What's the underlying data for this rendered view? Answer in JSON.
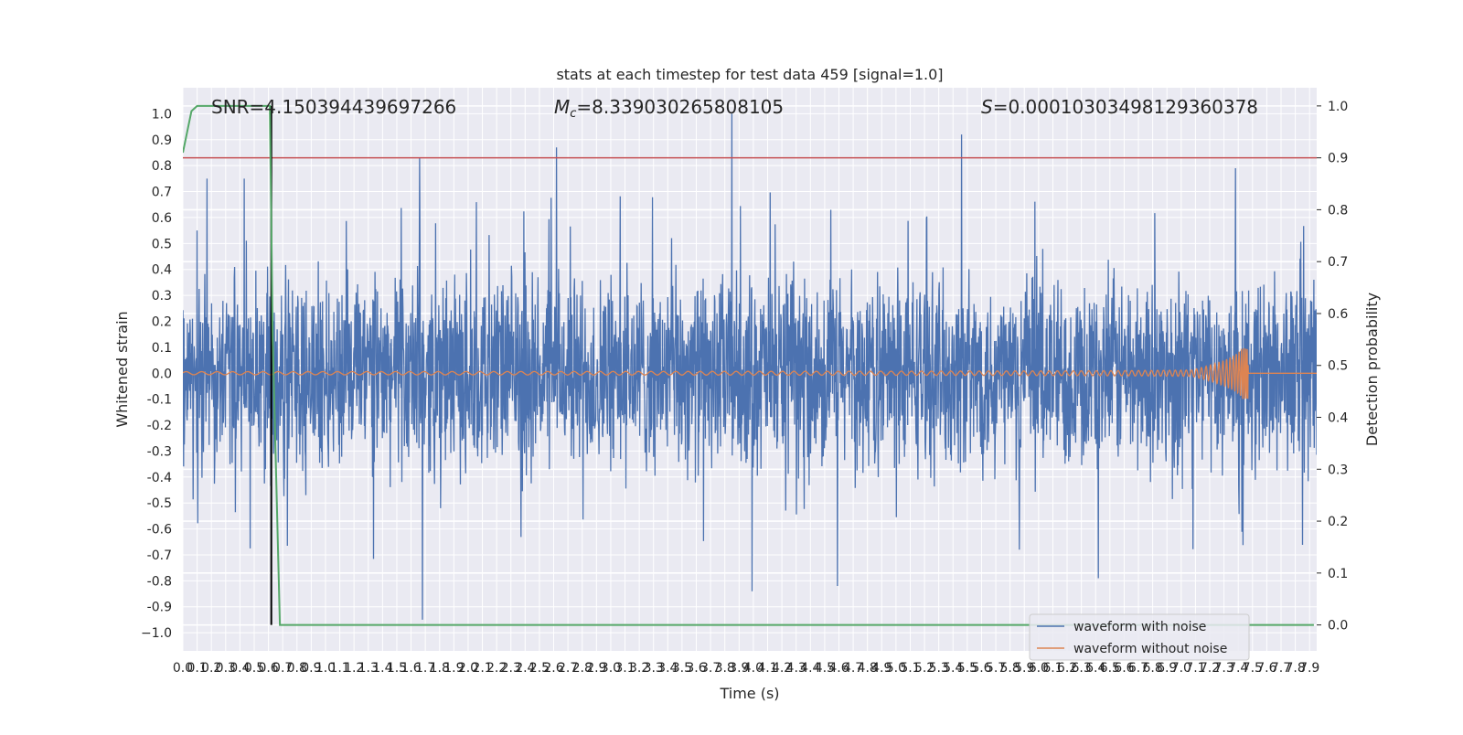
{
  "chart_data": {
    "type": "line",
    "title": "stats at each timestep for test data 459 [signal=1.0]",
    "xlabel": "Time (s)",
    "ylabel_left": "Whitened strain",
    "ylabel_right": "Detection probability",
    "xlim": [
      0,
      7.95
    ],
    "ylim_left": [
      -1.07,
      1.1
    ],
    "ylim_right": [
      -0.05,
      1.035
    ],
    "x_ticks": [
      "0.0",
      "0.1",
      "0.2",
      "0.3",
      "0.4",
      "0.5",
      "0.6",
      "0.7",
      "0.8",
      "0.9",
      "1.0",
      "1.1",
      "1.2",
      "1.3",
      "1.4",
      "1.5",
      "1.6",
      "1.7",
      "1.8",
      "1.9",
      "2.0",
      "2.1",
      "2.2",
      "2.3",
      "2.4",
      "2.5",
      "2.6",
      "2.7",
      "2.8",
      "2.9",
      "3.0",
      "3.1",
      "3.2",
      "3.3",
      "3.4",
      "3.5",
      "3.6",
      "3.7",
      "3.8",
      "3.9",
      "4.0",
      "4.1",
      "4.2",
      "4.3",
      "4.4",
      "4.5",
      "4.6",
      "4.7",
      "4.8",
      "4.9",
      "5.0",
      "5.1",
      "5.2",
      "5.3",
      "5.4",
      "5.5",
      "5.6",
      "5.7",
      "5.8",
      "5.9",
      "6.0",
      "6.1",
      "6.2",
      "6.3",
      "6.4",
      "6.5",
      "6.6",
      "6.7",
      "6.8",
      "6.9",
      "7.0",
      "7.1",
      "7.2",
      "7.3",
      "7.4",
      "7.5",
      "7.6",
      "7.7",
      "7.8",
      "7.9"
    ],
    "y_ticks_left": [
      "1.0",
      "0.9",
      "0.8",
      "0.7",
      "0.6",
      "0.5",
      "0.4",
      "0.3",
      "0.2",
      "0.1",
      "0.0",
      "-0.1",
      "-0.2",
      "-0.3",
      "-0.4",
      "-0.5",
      "-0.6",
      "-0.7",
      "-0.8",
      "-0.9",
      "−1.0"
    ],
    "y_ticks_right": [
      "1.0",
      "0.9",
      "0.8",
      "0.7",
      "0.6",
      "0.5",
      "0.4",
      "0.3",
      "0.2",
      "0.1",
      "0.0"
    ],
    "annotations": {
      "snr": "SNR=4.150394439697266",
      "mc_symbol": "M",
      "mc_sub": "c",
      "mc_value": "=8.339030265808105",
      "s_symbol": "S",
      "s_value": "=0.00010303498129360378"
    },
    "threshold_right": 0.9,
    "detection_marker_x": 0.62,
    "series": [
      {
        "name": "waveform with noise",
        "color": "#4c72b0",
        "axis": "left",
        "noise_envelope": 0.45,
        "notable_peaks": [
          {
            "x": 0.1,
            "y": 0.55
          },
          {
            "x": 0.17,
            "y": 0.75
          },
          {
            "x": 0.43,
            "y": 0.75
          },
          {
            "x": 1.66,
            "y": 0.83
          },
          {
            "x": 1.68,
            "y": -0.95
          },
          {
            "x": 2.62,
            "y": 0.87
          },
          {
            "x": 3.85,
            "y": 1.0
          },
          {
            "x": 3.99,
            "y": -0.84
          },
          {
            "x": 5.46,
            "y": 0.92
          },
          {
            "x": 7.38,
            "y": 0.79
          },
          {
            "x": 6.42,
            "y": -0.79
          },
          {
            "x": 4.59,
            "y": -0.82
          }
        ]
      },
      {
        "name": "waveform without noise",
        "color": "#dd8452",
        "axis": "left",
        "chirp_end_x": 7.47,
        "chirp_peak_amplitude": 0.1
      },
      {
        "name": "",
        "color": "#55a868",
        "axis": "right",
        "x": [
          0.0,
          0.06,
          0.1,
          0.15,
          0.61,
          0.63,
          0.68,
          7.93
        ],
        "y": [
          0.91,
          0.99,
          1.0,
          1.0,
          1.0,
          0.55,
          0.0,
          0.0
        ]
      }
    ],
    "legend_placement": "bottom-right",
    "grid": true
  }
}
